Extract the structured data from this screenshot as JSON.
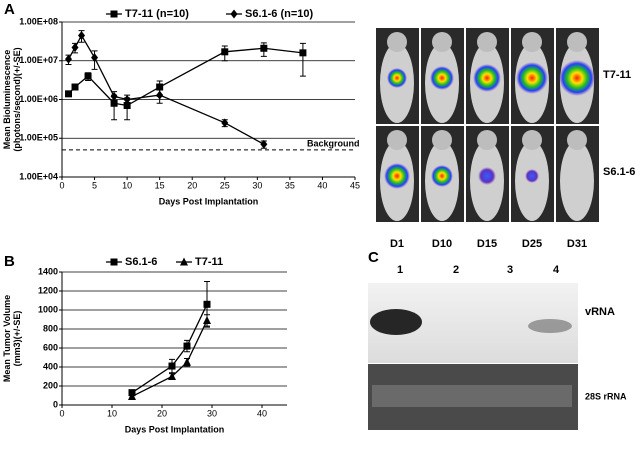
{
  "panel_labels": [
    "A",
    "B",
    "C"
  ],
  "imaging": {
    "rows": [
      "T7-11",
      "S6.1-6"
    ],
    "days": [
      "D1",
      "D10",
      "D15",
      "D25",
      "D31"
    ]
  },
  "gel": {
    "lanes": [
      "1",
      "2",
      "3",
      "4"
    ],
    "bands": [
      "vRNA",
      "28S rRNA"
    ]
  },
  "chart_data": [
    {
      "type": "line",
      "log_y": true,
      "xlabel": "Days Post Implantation",
      "ylabel": [
        "Mean Bioluminescence",
        "(photons/second)(+/-SE)"
      ],
      "xlim": [
        0,
        45
      ],
      "xticks": [
        0,
        5,
        10,
        15,
        20,
        25,
        30,
        35,
        40,
        45
      ],
      "ylim": [
        10000,
        100000000
      ],
      "yticks": [
        {
          "value": 10000,
          "label": "1.00E+04"
        },
        {
          "value": 100000,
          "label": "1.00E+05"
        },
        {
          "value": 1000000,
          "label": "1.00E+06"
        },
        {
          "value": 10000000,
          "label": "1.00E+07"
        },
        {
          "value": 100000000,
          "label": "1.00E+08"
        }
      ],
      "grid": true,
      "annotations": [
        {
          "text": "Background",
          "y": 50000
        }
      ],
      "series": [
        {
          "name": "T7-11 (n=10)",
          "color": "#000000",
          "marker": "square",
          "x": [
            1,
            2,
            4,
            8,
            10,
            15,
            25,
            31,
            37
          ],
          "values": [
            1400000,
            2100000,
            4000000,
            800000,
            700000,
            2100000,
            17000000,
            21000000,
            16000000
          ],
          "errors": [
            200000,
            300000,
            900000,
            500000,
            400000,
            900000,
            7000000,
            8000000,
            12000000
          ]
        },
        {
          "name": "S6.1-6 (n=10)",
          "color": "#000000",
          "marker": "diamond",
          "x": [
            1,
            2,
            3,
            5,
            8,
            10,
            15,
            25,
            31
          ],
          "values": [
            11000000,
            22000000,
            45000000,
            12000000,
            1200000,
            1000000,
            1300000,
            250000,
            70000
          ],
          "errors": [
            3000000,
            6000000,
            15000000,
            6000000,
            400000,
            300000,
            500000,
            50000,
            15000
          ]
        }
      ]
    },
    {
      "type": "line",
      "log_y": false,
      "xlabel": "Days Post Implantation",
      "ylabel": [
        "Mean Tumor Volume",
        "(mm3)(+/-SE)"
      ],
      "xlim": [
        0,
        45
      ],
      "xticks": [
        0,
        10,
        20,
        30,
        40
      ],
      "ylim": [
        0,
        1400
      ],
      "yticks": [
        0,
        200,
        400,
        600,
        800,
        1000,
        1200,
        1400
      ],
      "grid": true,
      "series": [
        {
          "name": "S6.1-6",
          "color": "#000000",
          "marker": "square",
          "x": [
            14,
            22,
            25,
            29
          ],
          "values": [
            130,
            410,
            620,
            1060
          ],
          "errors": [
            25,
            70,
            60,
            240
          ]
        },
        {
          "name": "T7-11",
          "color": "#000000",
          "marker": "triangle",
          "x": [
            14,
            22,
            25,
            29
          ],
          "values": [
            90,
            300,
            450,
            890
          ],
          "errors": [
            20,
            30,
            40,
            60
          ]
        }
      ]
    }
  ]
}
